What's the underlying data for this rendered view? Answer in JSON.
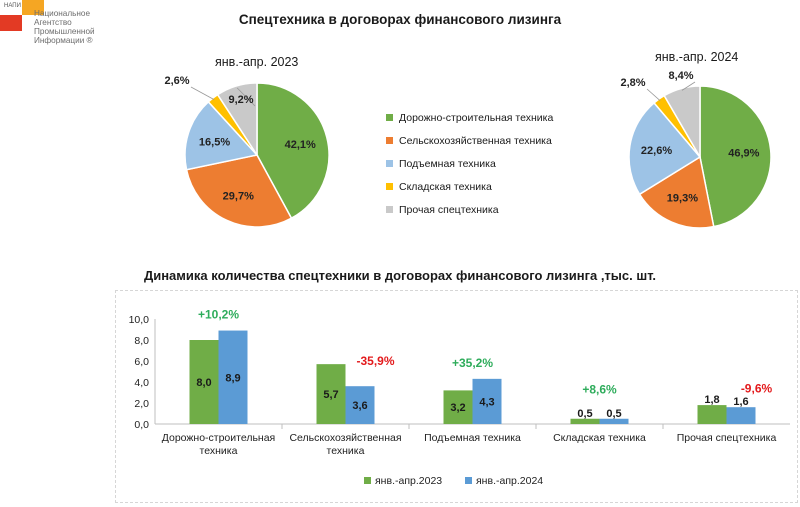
{
  "logo": {
    "brand": "НАПИ",
    "agency": "Национальное\nАгентство\nПромышленной\nИнформации ®"
  },
  "header": {
    "title": "Спецтехника в договорах финансового лизинга"
  },
  "colors": {
    "road": "#70ad47",
    "agri": "#ed7d31",
    "lift": "#9dc3e6",
    "warehouse": "#ffc000",
    "other": "#c9c9c9",
    "bar2023": "#70ad47",
    "bar2024": "#5b9bd5",
    "pos": "#2eac5b",
    "neg": "#e31a1c"
  },
  "legend": [
    {
      "label": "Дорожно-строительная техника",
      "key": "road"
    },
    {
      "label": "Сельскохозяйственная техника",
      "key": "agri"
    },
    {
      "label": "Подъемная техника",
      "key": "lift"
    },
    {
      "label": "Складская техника",
      "key": "warehouse"
    },
    {
      "label": "Прочая спецтехника",
      "key": "other"
    }
  ],
  "chart_data": [
    {
      "type": "pie",
      "title": "янв.-апр. 2023",
      "slices": [
        {
          "category": "Дорожно-строительная техника",
          "value": 42.1,
          "label": "42,1%"
        },
        {
          "category": "Сельскохозяйственная техника",
          "value": 29.7,
          "label": "29,7%"
        },
        {
          "category": "Подъемная техника",
          "value": 16.5,
          "label": "16,5%"
        },
        {
          "category": "Складская техника",
          "value": 2.6,
          "label": "2,6%"
        },
        {
          "category": "Прочая спецтехника",
          "value": 9.2,
          "label": "9,2%"
        }
      ]
    },
    {
      "type": "pie",
      "title": "янв.-апр. 2024",
      "slices": [
        {
          "category": "Дорожно-строительная техника",
          "value": 46.9,
          "label": "46,9%"
        },
        {
          "category": "Сельскохозяйственная техника",
          "value": 19.3,
          "label": "19,3%"
        },
        {
          "category": "Подъемная техника",
          "value": 22.6,
          "label": "22,6%"
        },
        {
          "category": "Складская техника",
          "value": 2.8,
          "label": "2,8%"
        },
        {
          "category": "Прочая спецтехника",
          "value": 8.4,
          "label": "8,4%"
        }
      ]
    },
    {
      "type": "bar",
      "title": "Динамика количества спецтехники в договорах финансового лизинга ,тыс. шт.",
      "categories": [
        [
          "Дорожно-строительная",
          "техника"
        ],
        [
          "Сельскохозяйственная",
          "техника"
        ],
        [
          "Подъемная техника"
        ],
        [
          "Складская техника"
        ],
        [
          "Прочая спецтехника"
        ]
      ],
      "series": [
        {
          "name": "янв.-апр.2023",
          "values": [
            8.0,
            5.7,
            3.2,
            0.5,
            1.8
          ],
          "labels": [
            "8,0",
            "5,7",
            "3,2",
            "0,5",
            "1,8"
          ]
        },
        {
          "name": "янв.-апр.2024",
          "values": [
            8.9,
            3.6,
            4.3,
            0.5,
            1.6
          ],
          "labels": [
            "8,9",
            "3,6",
            "4,3",
            "0,5",
            "1,6"
          ]
        }
      ],
      "changes": [
        {
          "label": "+10,2%",
          "sign": "pos"
        },
        {
          "label": "-35,9%",
          "sign": "neg"
        },
        {
          "label": "+35,2%",
          "sign": "pos"
        },
        {
          "label": "+8,6%",
          "sign": "pos"
        },
        {
          "label": "-9,6%",
          "sign": "neg"
        }
      ],
      "ylim": [
        0,
        10
      ],
      "yticks": [
        "0,0",
        "2,0",
        "4,0",
        "6,0",
        "8,0",
        "10,0"
      ]
    }
  ]
}
